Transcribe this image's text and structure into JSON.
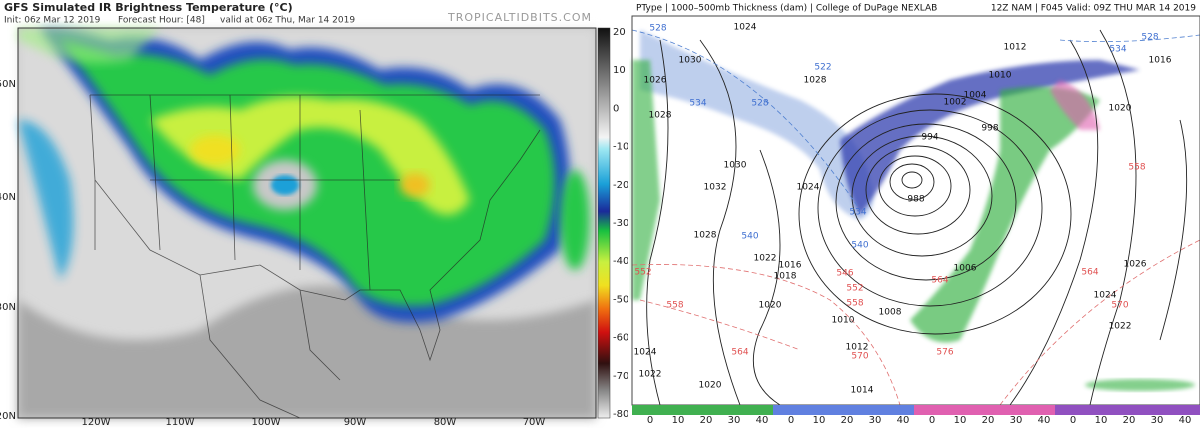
{
  "left_panel": {
    "title": "GFS Simulated IR Brightness Temperature (°C)",
    "init": "Init: 06z Mar 12 2019",
    "forecast_hour": "Forecast Hour: [48]",
    "valid": "valid at 06z Thu, Mar 14 2019",
    "credit": "TROPICALTIDBITS.COM",
    "lat_labels": [
      "50N",
      "40N",
      "30N",
      "20N"
    ],
    "lon_labels": [
      "120W",
      "110W",
      "100W",
      "90W",
      "80W",
      "70W"
    ],
    "colorbar_ticks": [
      20,
      10,
      0,
      -10,
      -20,
      -30,
      -40,
      -50,
      -60,
      -70,
      -80
    ]
  },
  "right_panel": {
    "header_left": "PType | 1000–500mb Thickness (dam) | College of DuPage NEXLAB",
    "header_right": "12Z NAM | F045 Valid: 09Z THU MAR 14 2019",
    "scale_groups": [
      [
        0,
        10,
        20,
        30,
        40
      ],
      [
        0,
        10,
        20,
        30,
        40
      ],
      [
        0,
        10,
        20,
        30,
        40
      ],
      [
        0,
        10,
        20,
        30,
        40
      ]
    ],
    "isobar_labels": [
      1024,
      1030,
      1026,
      1028,
      1028,
      1030,
      1032,
      1028,
      1022,
      1016,
      1018,
      1020,
      1010,
      1012,
      1014,
      1020,
      1024,
      1022,
      1008,
      1012,
      1016,
      1010,
      1004,
      1002,
      998,
      994,
      988,
      1020,
      1026,
      1024,
      1022,
      1006,
      1024
    ],
    "thickness_blue": [
      528,
      522,
      534,
      528,
      540,
      534,
      540,
      528,
      534
    ],
    "thickness_red": [
      552,
      546,
      552,
      558,
      564,
      558,
      564,
      570,
      570,
      576,
      564,
      558
    ]
  }
}
